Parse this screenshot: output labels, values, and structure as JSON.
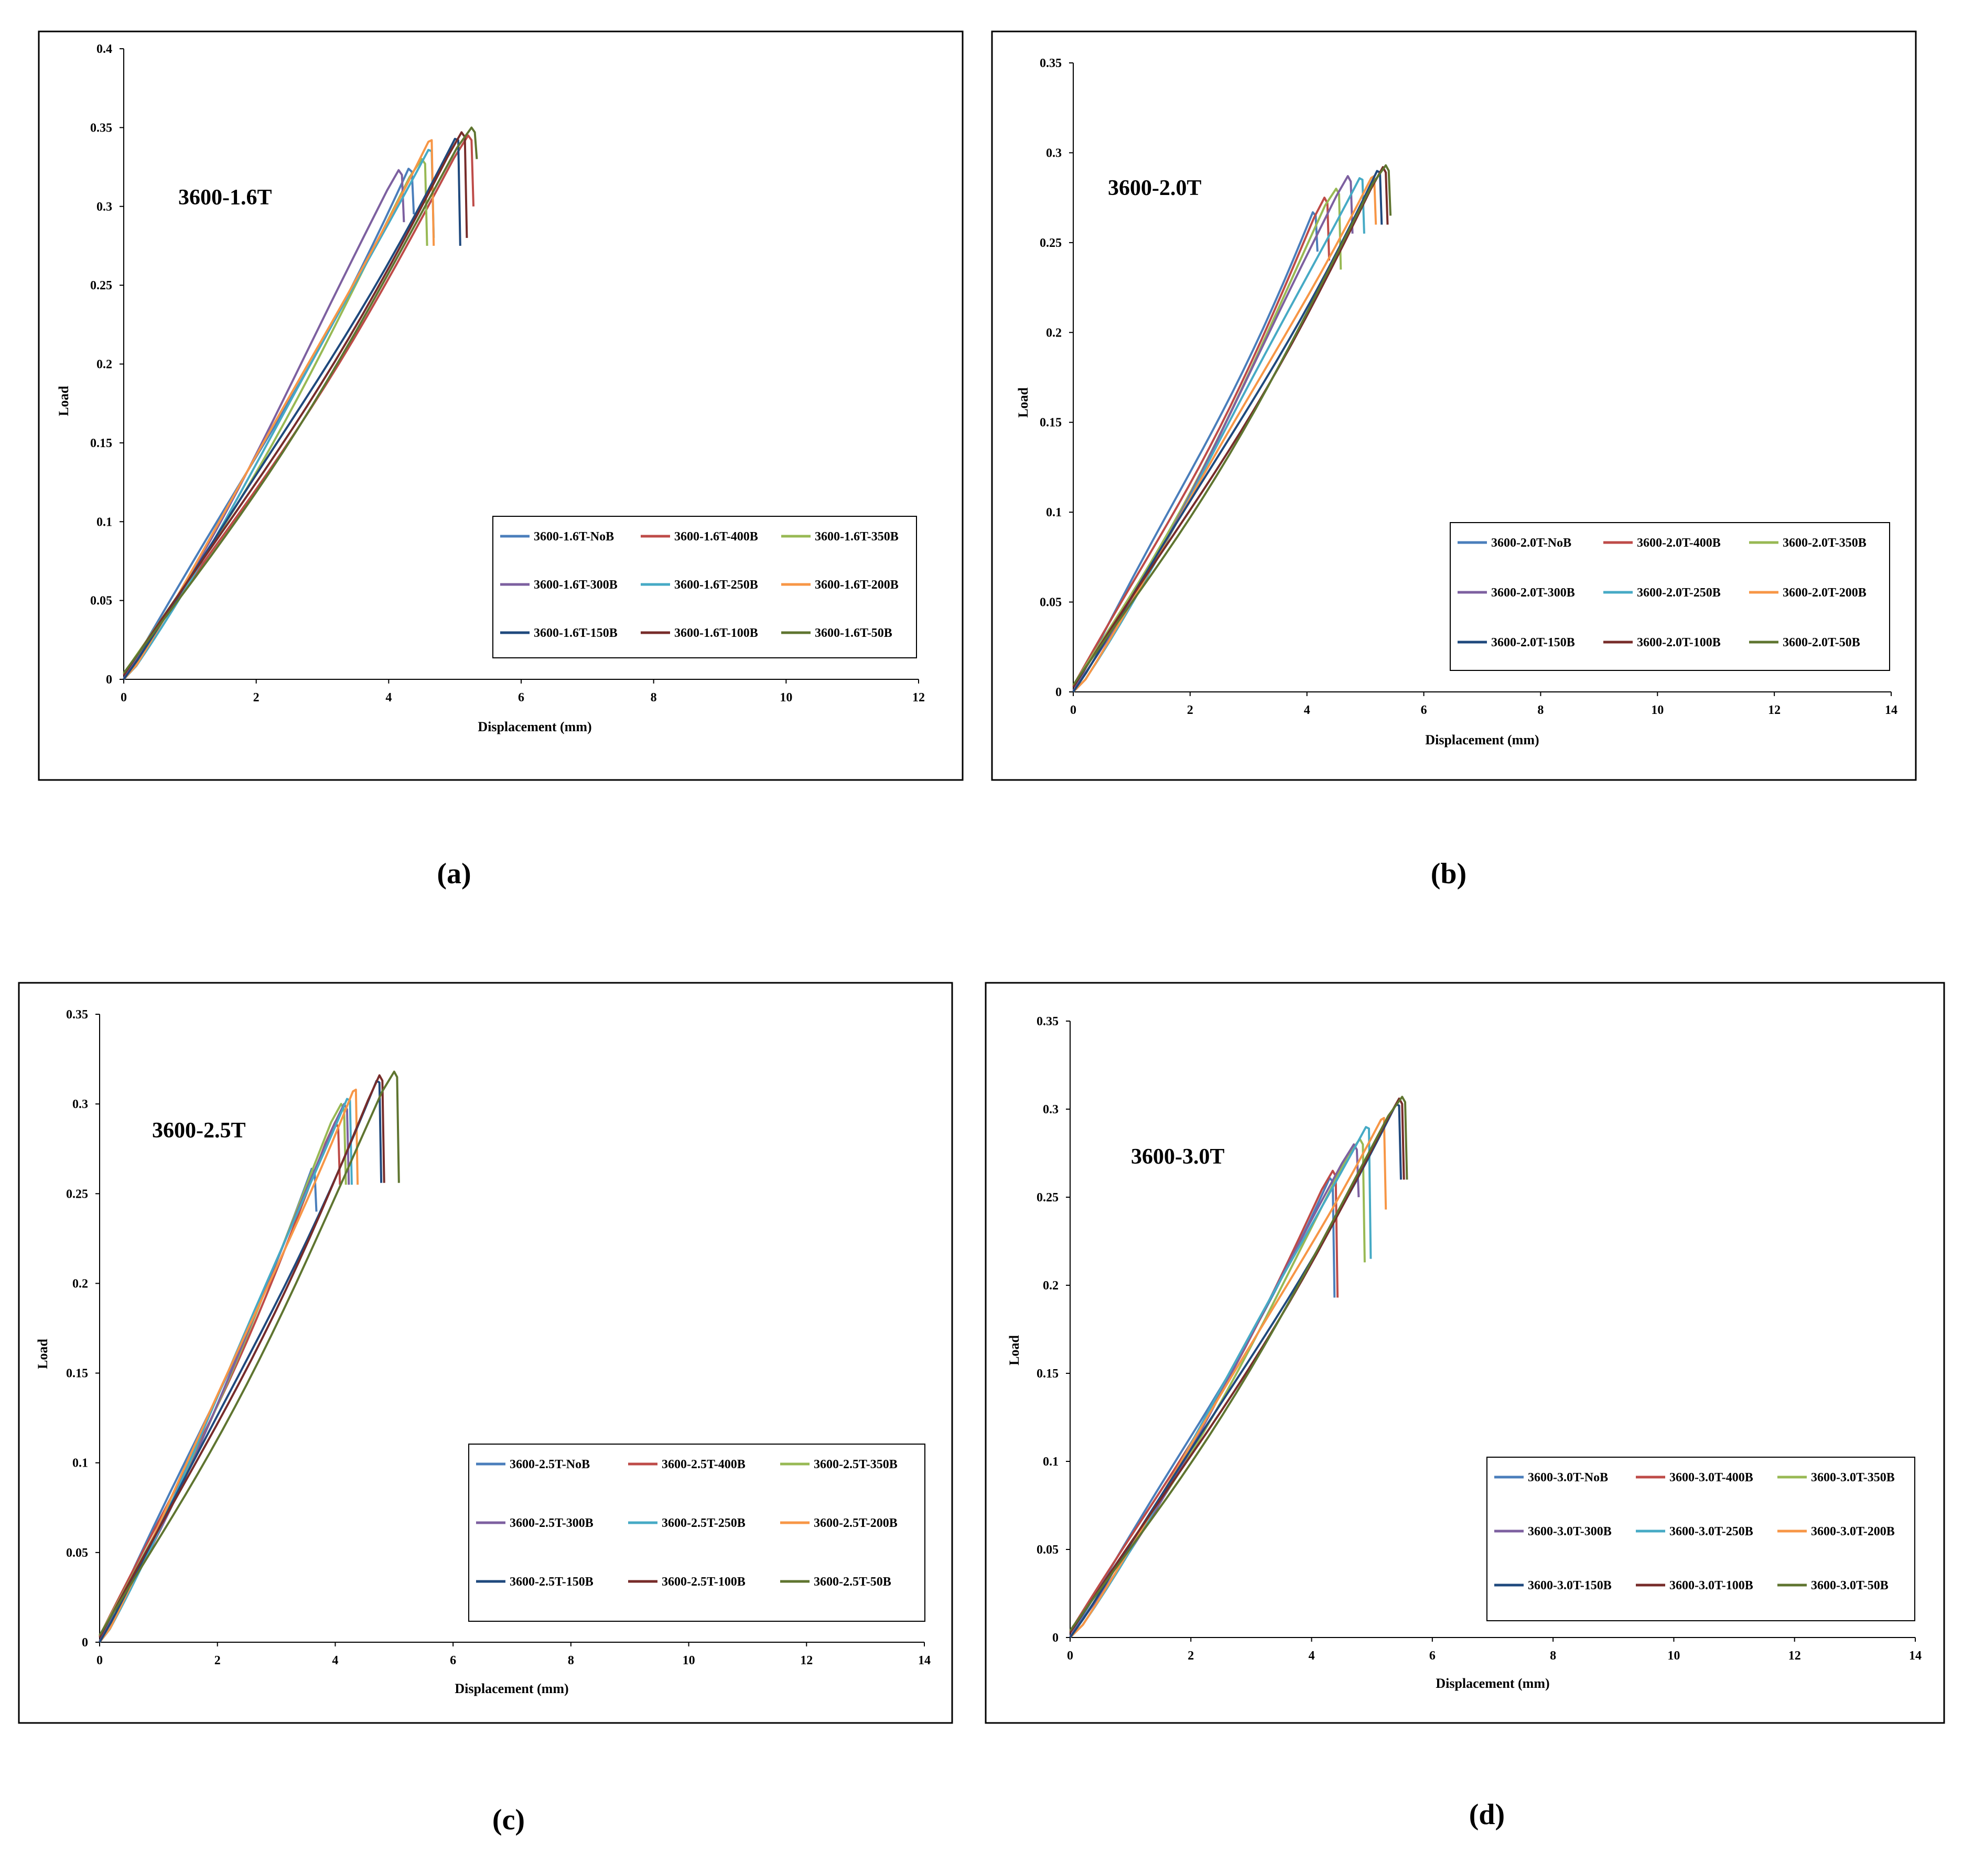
{
  "chart_data": [
    {
      "type": "line",
      "panel": "(a)",
      "annotation": "3600-1.6T",
      "xlabel": "Displacement (mm)",
      "ylabel": "Load",
      "xlim": [
        0,
        12
      ],
      "ylim": [
        0,
        0.4
      ],
      "xticks": [
        0,
        2,
        4,
        6,
        8,
        10,
        12
      ],
      "yticks": [
        0,
        0.05,
        0.1,
        0.15,
        0.2,
        0.25,
        0.3,
        0.35,
        0.4
      ],
      "series": [
        {
          "name": "3600-1.6T-NoB",
          "color": "#4a7ebb",
          "peak_x": 4.3,
          "peak_y": 0.325,
          "end_y": 0.295
        },
        {
          "name": "3600-1.6T-400B",
          "color": "#be4b48",
          "peak_x": 5.2,
          "peak_y": 0.345,
          "end_y": 0.3
        },
        {
          "name": "3600-1.6T-350B",
          "color": "#98b954",
          "peak_x": 4.5,
          "peak_y": 0.33,
          "end_y": 0.275
        },
        {
          "name": "3600-1.6T-300B",
          "color": "#7d60a0",
          "peak_x": 4.15,
          "peak_y": 0.323,
          "end_y": 0.29
        },
        {
          "name": "3600-1.6T-250B",
          "color": "#46aac5",
          "peak_x": 4.6,
          "peak_y": 0.338,
          "end_y": 0.28
        },
        {
          "name": "3600-1.6T-200B",
          "color": "#f79646",
          "peak_x": 4.6,
          "peak_y": 0.345,
          "end_y": 0.275
        },
        {
          "name": "3600-1.6T-150B",
          "color": "#1f497d",
          "peak_x": 5.0,
          "peak_y": 0.345,
          "end_y": 0.275
        },
        {
          "name": "3600-1.6T-100B",
          "color": "#772c2a",
          "peak_x": 5.1,
          "peak_y": 0.347,
          "end_y": 0.28
        },
        {
          "name": "3600-1.6T-50B",
          "color": "#5f7530",
          "peak_x": 5.25,
          "peak_y": 0.35,
          "end_y": 0.33
        }
      ]
    },
    {
      "type": "line",
      "panel": "(b)",
      "annotation": "3600-2.0T",
      "xlabel": "Displacement (mm)",
      "ylabel": "Load",
      "xlim": [
        0,
        14
      ],
      "ylim": [
        0,
        0.35
      ],
      "xticks": [
        0,
        2,
        4,
        6,
        8,
        10,
        12,
        14
      ],
      "yticks": [
        0,
        0.05,
        0.1,
        0.15,
        0.2,
        0.25,
        0.3,
        0.35
      ],
      "series": [
        {
          "name": "3600-2.0T-NoB",
          "color": "#4a7ebb",
          "peak_x": 4.1,
          "peak_y": 0.268,
          "end_y": 0.245
        },
        {
          "name": "3600-2.0T-400B",
          "color": "#be4b48",
          "peak_x": 4.3,
          "peak_y": 0.275,
          "end_y": 0.24
        },
        {
          "name": "3600-2.0T-350B",
          "color": "#98b954",
          "peak_x": 4.5,
          "peak_y": 0.28,
          "end_y": 0.235
        },
        {
          "name": "3600-2.0T-300B",
          "color": "#7d60a0",
          "peak_x": 4.7,
          "peak_y": 0.287,
          "end_y": 0.255
        },
        {
          "name": "3600-2.0T-250B",
          "color": "#46aac5",
          "peak_x": 4.9,
          "peak_y": 0.288,
          "end_y": 0.255
        },
        {
          "name": "3600-2.0T-200B",
          "color": "#f79646",
          "peak_x": 5.1,
          "peak_y": 0.29,
          "end_y": 0.26
        },
        {
          "name": "3600-2.0T-150B",
          "color": "#1f497d",
          "peak_x": 5.2,
          "peak_y": 0.292,
          "end_y": 0.26
        },
        {
          "name": "3600-2.0T-100B",
          "color": "#772c2a",
          "peak_x": 5.3,
          "peak_y": 0.292,
          "end_y": 0.26
        },
        {
          "name": "3600-2.0T-50B",
          "color": "#5f7530",
          "peak_x": 5.35,
          "peak_y": 0.293,
          "end_y": 0.265
        }
      ]
    },
    {
      "type": "line",
      "panel": "(c)",
      "annotation": "3600-2.5T",
      "xlabel": "Displacement (mm)",
      "ylabel": "Load",
      "xlim": [
        0,
        14
      ],
      "ylim": [
        0,
        0.35
      ],
      "xticks": [
        0,
        2,
        4,
        6,
        8,
        10,
        12,
        14
      ],
      "yticks": [
        0,
        0.05,
        0.1,
        0.15,
        0.2,
        0.25,
        0.3,
        0.35
      ],
      "series": [
        {
          "name": "3600-2.5T-NoB",
          "color": "#4a7ebb",
          "peak_x": 3.6,
          "peak_y": 0.265,
          "end_y": 0.24
        },
        {
          "name": "3600-2.5T-400B",
          "color": "#be4b48",
          "peak_x": 4.0,
          "peak_y": 0.29,
          "end_y": 0.255
        },
        {
          "name": "3600-2.5T-350B",
          "color": "#98b954",
          "peak_x": 4.1,
          "peak_y": 0.3,
          "end_y": 0.255
        },
        {
          "name": "3600-2.5T-300B",
          "color": "#7d60a0",
          "peak_x": 4.15,
          "peak_y": 0.3,
          "end_y": 0.255
        },
        {
          "name": "3600-2.5T-250B",
          "color": "#46aac5",
          "peak_x": 4.2,
          "peak_y": 0.305,
          "end_y": 0.255
        },
        {
          "name": "3600-2.5T-200B",
          "color": "#f79646",
          "peak_x": 4.3,
          "peak_y": 0.311,
          "end_y": 0.255
        },
        {
          "name": "3600-2.5T-150B",
          "color": "#1f497d",
          "peak_x": 4.7,
          "peak_y": 0.315,
          "end_y": 0.256
        },
        {
          "name": "3600-2.5T-100B",
          "color": "#772c2a",
          "peak_x": 4.75,
          "peak_y": 0.316,
          "end_y": 0.256
        },
        {
          "name": "3600-2.5T-50B",
          "color": "#5f7530",
          "peak_x": 5.0,
          "peak_y": 0.318,
          "end_y": 0.256
        }
      ]
    },
    {
      "type": "line",
      "panel": "(d)",
      "annotation": "3600-3.0T",
      "xlabel": "Displacement (mm)",
      "ylabel": "Load",
      "xlim": [
        0,
        14
      ],
      "ylim": [
        0,
        0.35
      ],
      "xticks": [
        0,
        2,
        4,
        6,
        8,
        10,
        12,
        14
      ],
      "yticks": [
        0,
        0.05,
        0.1,
        0.15,
        0.2,
        0.25,
        0.3,
        0.35
      ],
      "series": [
        {
          "name": "3600-3.0T-NoB",
          "color": "#4a7ebb",
          "peak_x": 4.3,
          "peak_y": 0.262,
          "end_y": 0.193
        },
        {
          "name": "3600-3.0T-400B",
          "color": "#be4b48",
          "peak_x": 4.35,
          "peak_y": 0.265,
          "end_y": 0.193
        },
        {
          "name": "3600-3.0T-350B",
          "color": "#98b954",
          "peak_x": 4.8,
          "peak_y": 0.283,
          "end_y": 0.213
        },
        {
          "name": "3600-3.0T-300B",
          "color": "#7d60a0",
          "peak_x": 4.7,
          "peak_y": 0.28,
          "end_y": 0.25
        },
        {
          "name": "3600-3.0T-250B",
          "color": "#46aac5",
          "peak_x": 4.9,
          "peak_y": 0.292,
          "end_y": 0.215
        },
        {
          "name": "3600-3.0T-200B",
          "color": "#f79646",
          "peak_x": 5.15,
          "peak_y": 0.298,
          "end_y": 0.243
        },
        {
          "name": "3600-3.0T-150B",
          "color": "#1f497d",
          "peak_x": 5.4,
          "peak_y": 0.305,
          "end_y": 0.26
        },
        {
          "name": "3600-3.0T-100B",
          "color": "#772c2a",
          "peak_x": 5.45,
          "peak_y": 0.306,
          "end_y": 0.26
        },
        {
          "name": "3600-3.0T-50B",
          "color": "#5f7530",
          "peak_x": 5.5,
          "peak_y": 0.307,
          "end_y": 0.26
        }
      ]
    }
  ]
}
